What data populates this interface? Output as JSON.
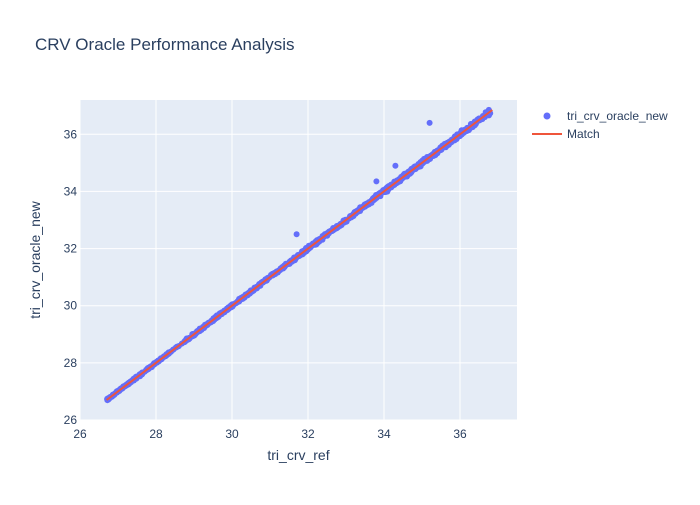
{
  "chart_data": {
    "type": "scatter",
    "title": "CRV Oracle Performance Analysis",
    "xlabel": "tri_crv_ref",
    "ylabel": "tri_crv_oracle_new",
    "xlim": [
      26,
      37.5
    ],
    "ylim": [
      26,
      37.2
    ],
    "x_ticks": [
      26,
      28,
      30,
      32,
      34,
      36
    ],
    "y_ticks": [
      26,
      28,
      30,
      32,
      34,
      36
    ],
    "grid": true,
    "legend_position": "top-right",
    "colors": {
      "points": "#636efa",
      "match_line": "#ef553b",
      "plot_background": "#e5ecf6",
      "grid": "#ffffff",
      "text": "#2a3f5f"
    },
    "series": [
      {
        "name": "tri_crv_oracle_new",
        "mode": "markers",
        "x_range": [
          26.7,
          36.8
        ],
        "outliers": [
          {
            "x": 31.7,
            "y": 32.5
          },
          {
            "x": 33.8,
            "y": 34.35
          },
          {
            "x": 34.3,
            "y": 34.9
          },
          {
            "x": 35.2,
            "y": 36.4
          },
          {
            "x": 28.4,
            "y": 28.4
          }
        ]
      },
      {
        "name": "Match",
        "mode": "line",
        "x": [
          26.7,
          36.85
        ],
        "y": [
          26.7,
          36.85
        ]
      }
    ]
  }
}
